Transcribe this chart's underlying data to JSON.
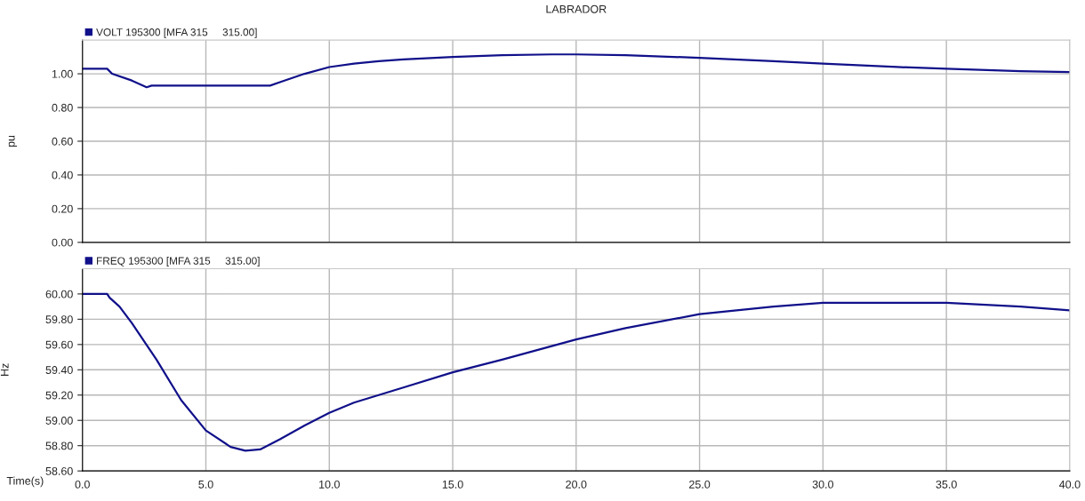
{
  "chart_data": [
    {
      "type": "line",
      "title": "LABRADOR",
      "ylabel": "pu",
      "xlim": [
        0,
        40
      ],
      "xticks": [
        0,
        5,
        10,
        15,
        20,
        25,
        30,
        35,
        40
      ],
      "ylim": [
        0,
        1.2
      ],
      "yticks": [
        {
          "value": 0,
          "label": "0.00"
        },
        {
          "value": 0.2,
          "label": "0.20"
        },
        {
          "value": 0.4,
          "label": "0.40"
        },
        {
          "value": 0.6,
          "label": "0.60"
        },
        {
          "value": 0.8,
          "label": "0.80"
        },
        {
          "value": 1.0,
          "label": "1.00"
        }
      ],
      "tick_labels": "y",
      "grid": true,
      "legend": "top left",
      "marker": "none",
      "line_style": "solid",
      "series": [
        {
          "name": "VOLT 195300 [MFA 315     315.00]",
          "color": "#10108a",
          "x": [
            0,
            1.0,
            1.2,
            2.0,
            2.6,
            2.8,
            5,
            7.6,
            8.0,
            9.0,
            10,
            11,
            12,
            13,
            15,
            17,
            19,
            20,
            22,
            25,
            28,
            30,
            33,
            35,
            38,
            40
          ],
          "values": [
            1.03,
            1.03,
            1.0,
            0.96,
            0.92,
            0.93,
            0.93,
            0.93,
            0.95,
            1.0,
            1.04,
            1.06,
            1.075,
            1.085,
            1.1,
            1.11,
            1.115,
            1.115,
            1.11,
            1.095,
            1.075,
            1.06,
            1.04,
            1.03,
            1.015,
            1.01
          ]
        }
      ]
    },
    {
      "type": "line",
      "xlabel": "Time(s)",
      "ylabel": "Hz",
      "xlim": [
        0,
        40
      ],
      "xticks": [
        {
          "value": 0,
          "label": "0.0"
        },
        {
          "value": 5,
          "label": "5.0"
        },
        {
          "value": 10,
          "label": "10.0"
        },
        {
          "value": 15,
          "label": "15.0"
        },
        {
          "value": 20,
          "label": "20.0"
        },
        {
          "value": 25,
          "label": "25.0"
        },
        {
          "value": 30,
          "label": "30.0"
        },
        {
          "value": 35,
          "label": "35.0"
        },
        {
          "value": 40,
          "label": "40.0"
        }
      ],
      "ylim": [
        58.6,
        60.2
      ],
      "yticks": [
        {
          "value": 58.6,
          "label": "58.60"
        },
        {
          "value": 58.8,
          "label": "58.80"
        },
        {
          "value": 59.0,
          "label": "59.00"
        },
        {
          "value": 59.2,
          "label": "59.20"
        },
        {
          "value": 59.4,
          "label": "59.40"
        },
        {
          "value": 59.6,
          "label": "59.60"
        },
        {
          "value": 59.8,
          "label": "59.80"
        },
        {
          "value": 60.0,
          "label": "60.00"
        }
      ],
      "grid": true,
      "legend": "top left",
      "marker": "none",
      "line_style": "solid",
      "series": [
        {
          "name": "FREQ 195300 [MFA 315     315.00]",
          "color": "#10108a",
          "x": [
            0,
            1.0,
            1.1,
            1.5,
            2,
            3,
            4,
            5,
            6,
            6.6,
            7.2,
            8,
            9,
            10,
            11,
            12,
            13,
            15,
            17,
            20,
            22,
            25,
            28,
            30,
            32,
            35,
            38,
            40
          ],
          "values": [
            60.0,
            60.0,
            59.97,
            59.9,
            59.77,
            59.48,
            59.16,
            58.92,
            58.79,
            58.76,
            58.77,
            58.85,
            58.96,
            59.06,
            59.14,
            59.2,
            59.26,
            59.38,
            59.48,
            59.64,
            59.73,
            59.84,
            59.9,
            59.93,
            59.93,
            59.93,
            59.9,
            59.87
          ]
        }
      ]
    }
  ]
}
